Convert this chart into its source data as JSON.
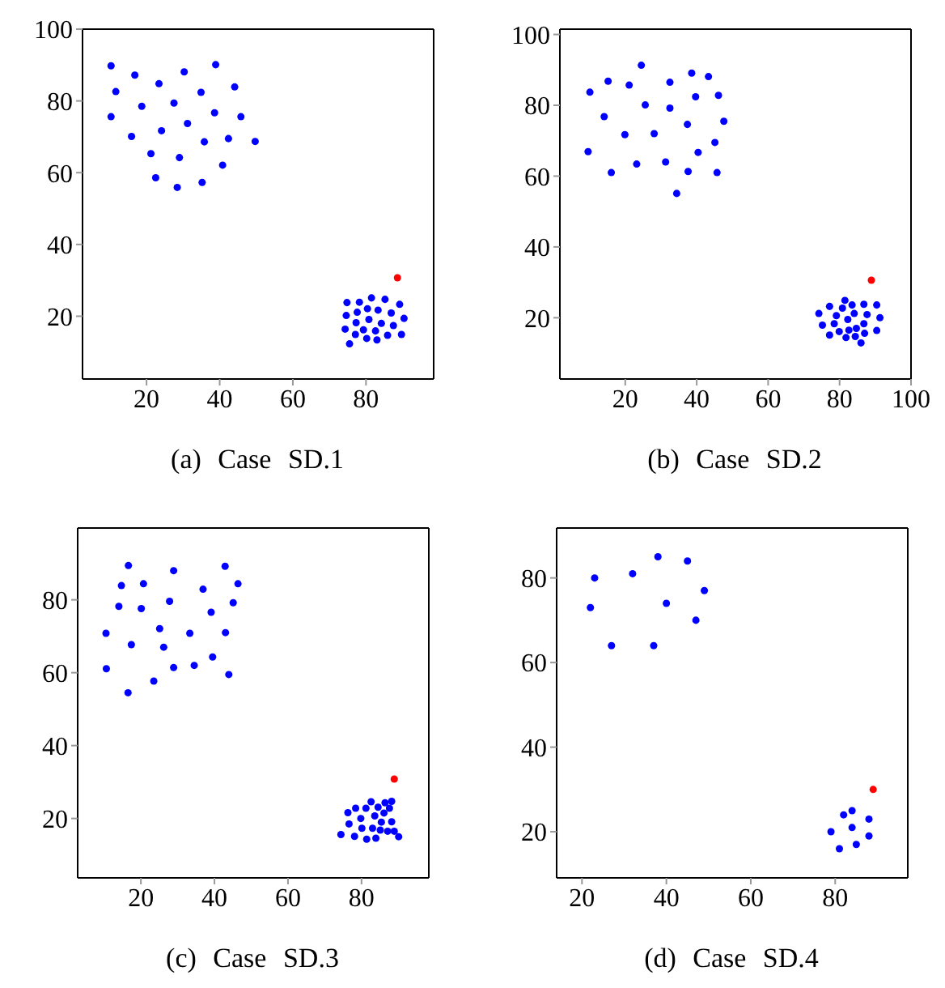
{
  "chart_data": [
    {
      "type": "scatter",
      "title": "(a) Case SD.1",
      "xlim": [
        2.5,
        98.5
      ],
      "ylim": [
        2.5,
        100
      ],
      "xticks": [
        20,
        40,
        60,
        80
      ],
      "yticks": [
        20,
        40,
        60,
        80,
        100
      ],
      "marker": "circle",
      "series": [
        {
          "color": "#0000ff",
          "x": [
            10.3,
            16.8,
            23.4,
            30.3,
            38.9,
            11.6,
            18.7,
            27.5,
            34.9,
            44.1,
            10.3,
            38.6,
            45.8,
            15.9,
            24.1,
            31.2,
            35.8,
            42.4,
            49.7,
            21.2,
            29.0,
            40.8,
            22.5,
            28.4,
            35.2,
            74.8,
            78.2,
            81.5,
            85.2,
            89.2,
            90.4,
            74.6,
            77.6,
            80.4,
            83.3,
            86.9,
            77.3,
            80.8,
            84.2,
            87.5,
            74.3,
            79.3,
            82.6,
            77.1,
            80.2,
            83.0,
            85.9,
            89.7,
            75.5
          ],
          "values": [
            89.8,
            87.2,
            84.8,
            88.1,
            90.1,
            82.6,
            78.5,
            79.4,
            82.4,
            83.9,
            75.6,
            76.7,
            75.6,
            70.1,
            71.7,
            73.7,
            68.6,
            69.5,
            68.7,
            65.3,
            64.2,
            62.1,
            58.6,
            55.9,
            57.3,
            23.8,
            23.9,
            25.1,
            24.7,
            23.3,
            19.4,
            20.2,
            21.1,
            22.1,
            21.7,
            20.9,
            18.2,
            19.1,
            18.0,
            17.4,
            16.4,
            16.2,
            15.9,
            14.9,
            13.8,
            13.4,
            14.7,
            14.9,
            12.3
          ]
        },
        {
          "color": "#ff0000",
          "x": [
            88.6
          ],
          "values": [
            30.7
          ]
        }
      ]
    },
    {
      "type": "scatter",
      "title": "(b) Case SD.2",
      "xlim": [
        1.7,
        100
      ],
      "ylim": [
        2.7,
        101.5
      ],
      "xticks": [
        20,
        40,
        60,
        80,
        100
      ],
      "yticks": [
        20,
        40,
        60,
        80,
        100
      ],
      "marker": "circle",
      "series": [
        {
          "color": "#0000ff",
          "x": [
            10.1,
            15.2,
            21.1,
            24.5,
            32.5,
            38.6,
            43.3,
            46.1,
            39.7,
            14.1,
            25.6,
            32.5,
            37.4,
            47.6,
            19.9,
            28.1,
            9.6,
            40.4,
            45.1,
            23.2,
            31.3,
            16.1,
            37.6,
            45.7,
            34.4,
            74.2,
            77.2,
            81.5,
            83.5,
            86.8,
            90.4,
            91.3,
            75.2,
            79.1,
            80.8,
            84.1,
            87.7,
            78.5,
            82.3,
            86.8,
            77.2,
            79.9,
            82.6,
            84.7,
            81.8,
            84.4,
            87.0,
            90.4,
            86.0
          ],
          "values": [
            83.7,
            86.8,
            85.7,
            91.3,
            86.5,
            89.1,
            88.1,
            82.8,
            82.4,
            76.8,
            80.1,
            79.2,
            74.6,
            75.5,
            71.7,
            72.0,
            66.9,
            66.7,
            69.5,
            63.4,
            64.0,
            61.0,
            61.3,
            61.0,
            55.1,
            21.2,
            23.2,
            24.9,
            23.6,
            23.8,
            23.6,
            20.0,
            17.9,
            20.6,
            22.7,
            21.2,
            20.9,
            18.3,
            19.5,
            18.3,
            15.1,
            16.1,
            16.5,
            17.0,
            14.4,
            14.7,
            15.6,
            16.4,
            12.9
          ]
        },
        {
          "color": "#ff0000",
          "x": [
            88.9
          ],
          "values": [
            30.6
          ]
        }
      ]
    },
    {
      "type": "scatter",
      "title": "(c) Case SD.3",
      "xlim": [
        2.8,
        98.3
      ],
      "ylim": [
        3.7,
        99.7
      ],
      "xticks": [
        20,
        40,
        60,
        80
      ],
      "yticks": [
        20,
        40,
        60,
        80
      ],
      "marker": "circle",
      "series": [
        {
          "color": "#0000ff",
          "x": [
            16.6,
            14.7,
            20.7,
            28.9,
            42.9,
            46.4,
            36.9,
            14.0,
            20.1,
            27.8,
            39.1,
            45.1,
            10.5,
            25.1,
            33.3,
            43.0,
            17.4,
            26.2,
            10.6,
            28.9,
            34.5,
            39.5,
            43.9,
            23.5,
            16.5,
            74.4,
            76.3,
            76.6,
            78.4,
            78.1,
            79.8,
            80.1,
            81.4,
            81.2,
            82.6,
            83.0,
            83.6,
            83.9,
            84.5,
            85.4,
            85.1,
            86.1,
            86.4,
            87.1,
            87.6,
            88.2,
            88.2,
            88.9,
            90.1
          ],
          "values": [
            89.4,
            83.9,
            84.4,
            88.0,
            89.2,
            84.4,
            82.9,
            78.2,
            77.6,
            79.6,
            76.6,
            79.2,
            70.8,
            72.1,
            70.8,
            71.0,
            67.7,
            67.0,
            61.1,
            61.4,
            62.0,
            64.3,
            59.5,
            57.7,
            54.5,
            15.6,
            21.6,
            18.5,
            22.8,
            15.1,
            20.0,
            17.3,
            14.3,
            22.8,
            24.6,
            17.3,
            20.7,
            14.6,
            23.1,
            19.0,
            16.8,
            21.5,
            24.3,
            16.5,
            22.8,
            24.7,
            19.1,
            16.5,
            15.0
          ]
        },
        {
          "color": "#ff0000",
          "x": [
            88.9
          ],
          "values": [
            30.8
          ]
        }
      ]
    },
    {
      "type": "scatter",
      "title": "(d) Case SD.4",
      "xlim": [
        14,
        97.2
      ],
      "ylim": [
        9.1,
        91.8
      ],
      "xticks": [
        20,
        40,
        60,
        80
      ],
      "yticks": [
        20,
        40,
        60,
        80
      ],
      "marker": "circle",
      "series": [
        {
          "color": "#0000ff",
          "x": [
            22,
            23,
            27,
            32,
            37,
            38,
            40,
            45,
            47,
            49,
            79,
            81,
            82,
            84,
            84,
            85,
            88,
            88
          ],
          "values": [
            73,
            80,
            64,
            81,
            64,
            85,
            74,
            84,
            70,
            77,
            20,
            16,
            24,
            25,
            21,
            17,
            23,
            19
          ]
        },
        {
          "color": "#ff0000",
          "x": [
            89
          ],
          "values": [
            30
          ]
        }
      ]
    }
  ]
}
